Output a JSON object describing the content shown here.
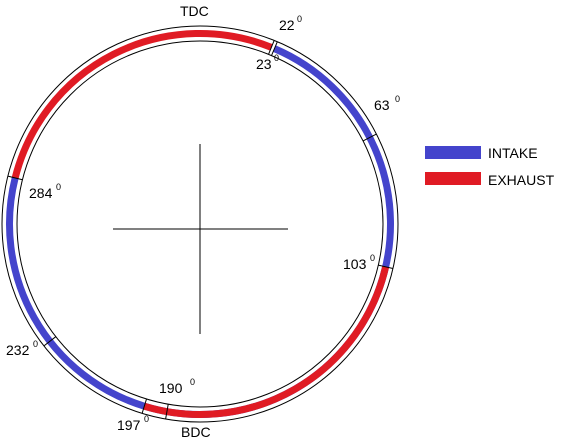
{
  "diagram": {
    "top_label": "TDC",
    "bottom_label": "BDC",
    "colors": {
      "intake": "#4444cc",
      "exhaust": "#e01b24",
      "outline": "#000000"
    },
    "intake_arc": {
      "start_deg": 23,
      "end_deg": 284
    },
    "exhaust_arcs": [
      {
        "start_deg": 103,
        "end_deg": 197
      },
      {
        "start_deg": 284,
        "end_deg": 382
      }
    ],
    "angle_labels": [
      {
        "value": "22",
        "sup": "0"
      },
      {
        "value": "23",
        "sup": "0"
      },
      {
        "value": "63",
        "sup": "0"
      },
      {
        "value": "103",
        "sup": "0"
      },
      {
        "value": "190",
        "sup": "0"
      },
      {
        "value": "197",
        "sup": "0"
      },
      {
        "value": "232",
        "sup": "0"
      },
      {
        "value": "284",
        "sup": "0"
      }
    ],
    "tick_angles": [
      22,
      23,
      63,
      103,
      190,
      197,
      232,
      284
    ],
    "legend": [
      {
        "label": "INTAKE",
        "color": "#4444cc"
      },
      {
        "label": "EXHAUST",
        "color": "#e01b24"
      }
    ]
  }
}
